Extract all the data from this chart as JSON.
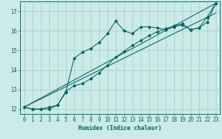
{
  "xlabel": "Humidex (Indice chaleur)",
  "ylabel": "",
  "background_color": "#cceae7",
  "grid_color": "#aad4d0",
  "line_color": "#006666",
  "xlim": [
    -0.5,
    23.5
  ],
  "ylim": [
    11.75,
    17.5
  ],
  "yticks": [
    12,
    13,
    14,
    15,
    16,
    17
  ],
  "xticks": [
    0,
    1,
    2,
    3,
    4,
    5,
    6,
    7,
    8,
    9,
    10,
    11,
    12,
    13,
    14,
    15,
    16,
    17,
    18,
    19,
    20,
    21,
    22,
    23
  ],
  "line1_x": [
    0,
    1,
    2,
    3,
    4,
    5,
    6,
    7,
    8,
    9,
    10,
    11,
    12,
    13,
    14,
    15,
    16,
    17,
    18,
    19,
    20,
    21,
    22,
    23
  ],
  "line1_y": [
    12.1,
    12.0,
    12.0,
    12.0,
    12.2,
    12.85,
    14.6,
    14.9,
    15.1,
    15.4,
    15.85,
    16.5,
    16.0,
    15.85,
    16.2,
    16.2,
    16.15,
    16.05,
    16.2,
    16.3,
    16.05,
    16.15,
    16.7,
    17.4
  ],
  "line2_x": [
    0,
    1,
    2,
    3,
    4,
    5,
    6,
    7,
    8,
    9,
    10,
    11,
    12,
    13,
    14,
    15,
    16,
    17,
    18,
    19,
    20,
    21,
    22,
    23
  ],
  "line2_y": [
    12.1,
    12.0,
    12.0,
    12.1,
    12.2,
    12.9,
    13.2,
    13.3,
    13.55,
    13.85,
    14.25,
    14.65,
    14.95,
    15.25,
    15.5,
    15.75,
    15.95,
    16.1,
    16.25,
    16.35,
    16.05,
    16.15,
    16.45,
    17.4
  ],
  "line3_x": [
    0,
    23
  ],
  "line3_y": [
    12.1,
    17.4
  ],
  "line4_x": [
    0,
    23
  ],
  "line4_y": [
    12.1,
    16.9
  ]
}
